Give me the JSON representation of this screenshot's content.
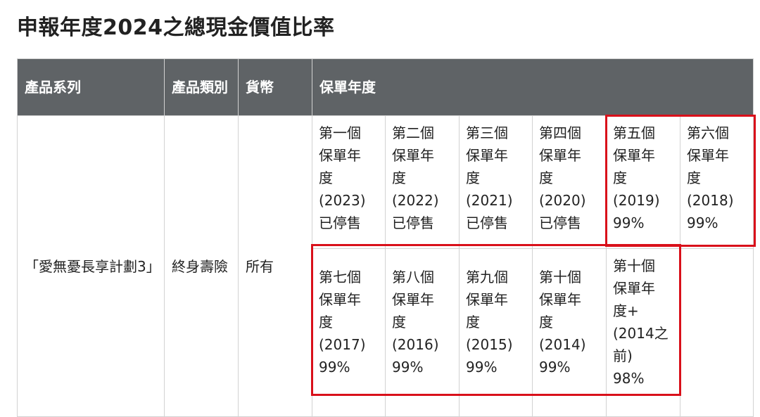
{
  "title": "申報年度2024之總現金價值比率",
  "header": {
    "product_series": "產品系列",
    "product_category": "產品類別",
    "currency": "貨幣",
    "policy_year": "保單年度"
  },
  "row": {
    "product_series": "「愛無憂長享計劃3」",
    "product_category": "終身壽險",
    "currency": "所有"
  },
  "years": [
    {
      "l1": "第一個",
      "l2": "保單年",
      "l3": "度",
      "l4": "(2023)",
      "l5": "已停售"
    },
    {
      "l1": "第二個",
      "l2": "保單年",
      "l3": "度",
      "l4": "(2022)",
      "l5": "已停售"
    },
    {
      "l1": "第三個",
      "l2": "保單年",
      "l3": "度",
      "l4": "(2021)",
      "l5": "已停售"
    },
    {
      "l1": "第四個",
      "l2": "保單年",
      "l3": "度",
      "l4": "(2020)",
      "l5": "已停售"
    },
    {
      "l1": "第五個",
      "l2": "保單年",
      "l3": "度",
      "l4": "(2019)",
      "l5": "99%"
    },
    {
      "l1": "第六個",
      "l2": "保單年",
      "l3": "度",
      "l4": "(2018)",
      "l5": "99%"
    },
    {
      "l1": "第七個",
      "l2": "保單年",
      "l3": "度",
      "l4": "(2017)",
      "l5": "99%"
    },
    {
      "l1": "第八個",
      "l2": "保單年",
      "l3": "度",
      "l4": "(2016)",
      "l5": "99%"
    },
    {
      "l1": "第九個",
      "l2": "保單年",
      "l3": "度",
      "l4": "(2015)",
      "l5": "99%"
    },
    {
      "l1": "第十個",
      "l2": "保單年",
      "l3": "度",
      "l4": "(2014)",
      "l5": "99%"
    },
    {
      "l1": "第十個",
      "l2": "保單年",
      "l3": "度+",
      "l4": "(2014之",
      "l5": "前)",
      "l6": "98%"
    }
  ],
  "colors": {
    "header_bg": "#5f6366",
    "highlight": "#d9101a"
  }
}
